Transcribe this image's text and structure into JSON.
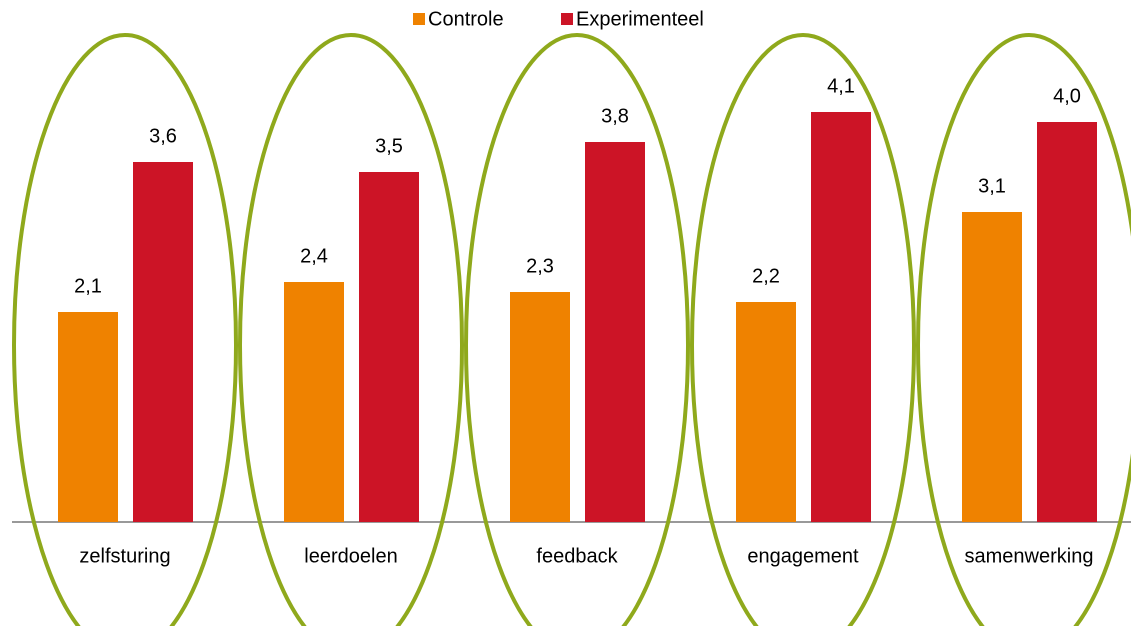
{
  "chart_data": {
    "type": "bar",
    "categories": [
      "zelfsturing",
      "leerdoelen",
      "feedback",
      "engagement",
      "samenwerking"
    ],
    "series": [
      {
        "name": "Controle",
        "color": "#ef8200",
        "values": [
          2.1,
          2.4,
          2.3,
          2.2,
          3.1
        ],
        "value_labels": [
          "2,1",
          "2,4",
          "2,3",
          "2,2",
          "3,1"
        ]
      },
      {
        "name": "Experimenteel",
        "color": "#cc1426",
        "values": [
          3.6,
          3.5,
          3.8,
          4.1,
          4.0
        ],
        "value_labels": [
          "3,6",
          "3,5",
          "3,8",
          "4,1",
          "4,0"
        ]
      }
    ],
    "ylim": [
      0,
      5
    ],
    "legend": "top"
  }
}
